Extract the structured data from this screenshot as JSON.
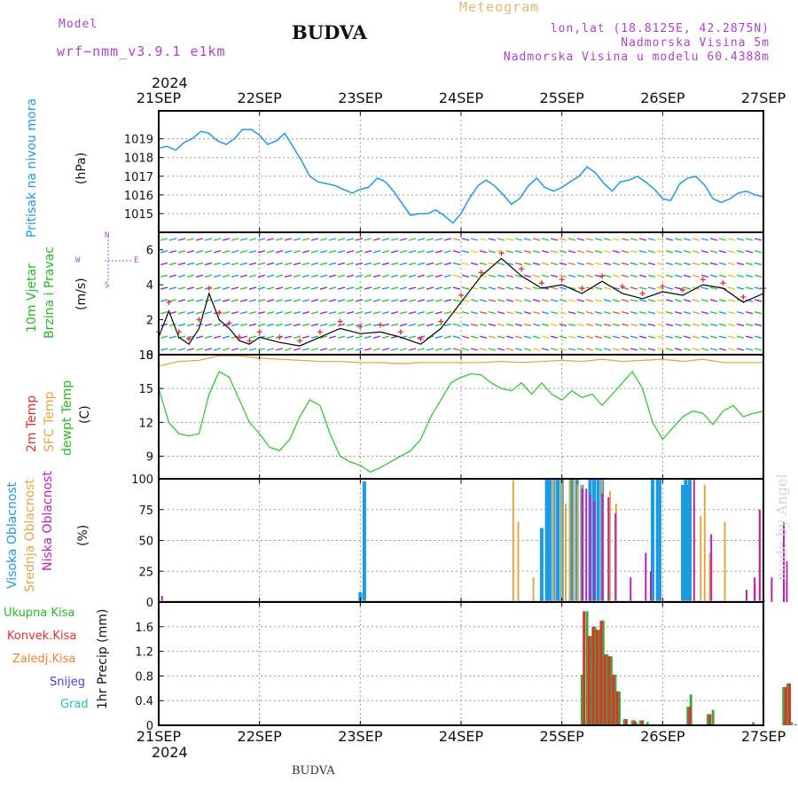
{
  "header": {
    "model_label": "Model",
    "model_name": "wrf−nmm_v3.9.1  e1km",
    "title": "BUDVA",
    "meteogram": "Meteogram",
    "coords": "lon,lat (18.8125E, 42.2875N)",
    "elevation": "Nadmorska Visina 5m",
    "model_elevation": "Nadmorska Visina u modelu 60.4388m"
  },
  "footer": {
    "title": "BUDVA"
  },
  "watermark": "made by Angel",
  "colors": {
    "pressure": "#1e9be0",
    "sfc_temp": "#e0a840",
    "dewpt": "#2ecc2e",
    "temp2m": "#e03030",
    "high_cloud": "#1e9be0",
    "mid_cloud": "#e0a840",
    "low_cloud": "#c020b0",
    "total_precip": "#3aaa3a",
    "conv_precip": "#e03030",
    "frz_precip": "#f08030",
    "snow": "#4040e0",
    "hail": "#20c0c0",
    "wind_speed": "#000000",
    "wind_gust": "#e03030"
  },
  "time_axis": {
    "year": "2024",
    "days": [
      "21SEP",
      "22SEP",
      "23SEP",
      "24SEP",
      "25SEP",
      "26SEP",
      "27SEP"
    ]
  },
  "wind_direction_legend": {
    "north": "N",
    "south": "S",
    "west": "W",
    "east": "E"
  },
  "chart_data": [
    {
      "type": "line",
      "name": "pressure",
      "title": "",
      "ylabels": [
        "Pritisak na nivou mora",
        "(hPa)"
      ],
      "ylim": [
        1014,
        1020.5
      ],
      "yticks": [
        1015,
        1016,
        1017,
        1018,
        1019
      ],
      "x_unit": "days since 21SEP 00UTC",
      "series": [
        {
          "name": "Pritisak na nivou mora",
          "x": [
            0,
            0.08,
            0.17,
            0.25,
            0.33,
            0.42,
            0.5,
            0.58,
            0.67,
            0.75,
            0.83,
            0.92,
            1.0,
            1.08,
            1.17,
            1.25,
            1.33,
            1.42,
            1.5,
            1.58,
            1.67,
            1.75,
            1.83,
            1.92,
            2.0,
            2.08,
            2.17,
            2.25,
            2.33,
            2.42,
            2.5,
            2.58,
            2.67,
            2.75,
            2.83,
            2.92,
            3.0,
            3.08,
            3.17,
            3.25,
            3.33,
            3.42,
            3.5,
            3.58,
            3.67,
            3.75,
            3.83,
            3.92,
            4.0,
            4.08,
            4.17,
            4.25,
            4.33,
            4.42,
            4.5,
            4.58,
            4.67,
            4.75,
            4.83,
            4.92,
            5.0,
            5.08,
            5.17,
            5.25,
            5.33,
            5.42,
            5.5,
            5.58,
            5.67,
            5.75,
            5.83,
            5.92,
            6.0
          ],
          "values": [
            1018.5,
            1018.6,
            1018.4,
            1018.8,
            1019.0,
            1019.4,
            1019.3,
            1018.9,
            1018.7,
            1019.0,
            1019.5,
            1019.5,
            1019.2,
            1018.7,
            1018.9,
            1019.3,
            1018.6,
            1017.8,
            1017.0,
            1016.7,
            1016.6,
            1016.5,
            1016.3,
            1016.1,
            1016.3,
            1016.4,
            1016.9,
            1016.7,
            1016.2,
            1015.5,
            1014.9,
            1015.0,
            1015.0,
            1015.2,
            1014.9,
            1014.5,
            1015.0,
            1015.8,
            1016.5,
            1016.8,
            1016.5,
            1016.0,
            1015.5,
            1015.8,
            1016.5,
            1016.9,
            1016.4,
            1016.2,
            1016.4,
            1016.7,
            1017.0,
            1017.5,
            1017.2,
            1016.6,
            1016.2,
            1016.7,
            1016.8,
            1017.0,
            1016.7,
            1016.3,
            1015.8,
            1015.7,
            1016.6,
            1016.9,
            1017.0,
            1016.5,
            1015.8,
            1015.6,
            1015.8,
            1016.1,
            1016.2,
            1016.0,
            1015.9
          ]
        }
      ]
    },
    {
      "type": "line",
      "name": "wind",
      "title": "",
      "ylabels": [
        "10m Vjetar",
        "Brzina i Pravac",
        "(m/s)"
      ],
      "ylim": [
        0,
        7
      ],
      "yticks": [
        0,
        2,
        4,
        6
      ],
      "x_unit": "days since 21SEP 00UTC",
      "series": [
        {
          "name": "speed",
          "x": [
            0,
            0.1,
            0.2,
            0.3,
            0.4,
            0.5,
            0.6,
            0.7,
            0.8,
            0.9,
            1.0,
            1.2,
            1.4,
            1.6,
            1.8,
            2.0,
            2.2,
            2.4,
            2.6,
            2.8,
            3.0,
            3.2,
            3.4,
            3.6,
            3.8,
            4.0,
            4.2,
            4.4,
            4.6,
            4.8,
            5.0,
            5.2,
            5.4,
            5.6,
            5.8,
            6.0
          ],
          "values": [
            1.0,
            2.5,
            1.0,
            0.6,
            1.5,
            3.5,
            2.0,
            1.5,
            0.8,
            0.6,
            1.0,
            0.7,
            0.5,
            1.0,
            1.5,
            1.2,
            1.3,
            1.0,
            0.6,
            1.5,
            3.0,
            4.5,
            5.5,
            4.5,
            3.8,
            4.0,
            3.5,
            4.2,
            3.5,
            3.2,
            3.6,
            3.4,
            4.0,
            3.8,
            3.0,
            3.5
          ]
        },
        {
          "name": "gust",
          "x": [
            0,
            0.1,
            0.2,
            0.3,
            0.4,
            0.5,
            0.6,
            0.7,
            0.8,
            0.9,
            1.0,
            1.2,
            1.4,
            1.6,
            1.8,
            2.0,
            2.2,
            2.4,
            2.6,
            2.8,
            3.0,
            3.2,
            3.4,
            3.6,
            3.8,
            4.0,
            4.2,
            4.4,
            4.6,
            4.8,
            5.0,
            5.2,
            5.4,
            5.6,
            5.8,
            6.0
          ],
          "values": [
            1.3,
            3.0,
            1.3,
            0.9,
            2.0,
            3.8,
            2.4,
            1.8,
            1.0,
            0.8,
            1.3,
            1.0,
            0.8,
            1.3,
            1.9,
            1.6,
            1.7,
            1.3,
            0.9,
            1.9,
            3.4,
            4.7,
            5.8,
            4.9,
            4.1,
            4.3,
            3.8,
            4.5,
            3.9,
            3.5,
            3.9,
            3.7,
            4.3,
            4.1,
            3.3,
            3.8
          ]
        }
      ]
    },
    {
      "type": "line",
      "name": "temperature",
      "title": "",
      "ylabels": [
        "2m Temp",
        "SFC Temp",
        "dewpt Temp",
        "(C)"
      ],
      "ylim": [
        7,
        18
      ],
      "yticks": [
        9,
        12,
        15,
        18
      ],
      "x_unit": "days since 21SEP 00UTC",
      "series": [
        {
          "name": "SFC Temp",
          "x": [
            0,
            0.2,
            0.4,
            0.6,
            0.8,
            1.0,
            1.2,
            1.4,
            1.6,
            1.8,
            2.0,
            2.2,
            2.4,
            2.6,
            2.8,
            3.0,
            3.2,
            3.4,
            3.6,
            3.8,
            4.0,
            4.2,
            4.4,
            4.6,
            4.8,
            5.0,
            5.2,
            5.4,
            5.6,
            5.8,
            6.0
          ],
          "values": [
            17.0,
            17.4,
            17.5,
            17.9,
            17.9,
            17.7,
            17.6,
            17.5,
            17.4,
            17.4,
            17.3,
            17.3,
            17.2,
            17.3,
            17.3,
            17.3,
            17.3,
            17.4,
            17.3,
            17.4,
            17.5,
            17.4,
            17.6,
            17.4,
            17.5,
            17.6,
            17.4,
            17.6,
            17.3,
            17.3,
            17.3
          ]
        },
        {
          "name": "dewpt Temp",
          "x": [
            0,
            0.1,
            0.2,
            0.3,
            0.4,
            0.5,
            0.6,
            0.7,
            0.8,
            0.9,
            1.0,
            1.1,
            1.2,
            1.3,
            1.4,
            1.5,
            1.6,
            1.7,
            1.8,
            1.9,
            2.0,
            2.1,
            2.2,
            2.3,
            2.4,
            2.5,
            2.6,
            2.7,
            2.8,
            2.9,
            3.0,
            3.1,
            3.2,
            3.3,
            3.4,
            3.5,
            3.6,
            3.7,
            3.8,
            3.9,
            4.0,
            4.1,
            4.2,
            4.3,
            4.4,
            4.5,
            4.6,
            4.7,
            4.8,
            4.9,
            5.0,
            5.1,
            5.2,
            5.3,
            5.4,
            5.5,
            5.6,
            5.7,
            5.8,
            5.9,
            6.0
          ],
          "values": [
            15.0,
            12.0,
            11.0,
            10.8,
            11.0,
            14.5,
            16.5,
            16.0,
            14.0,
            12.0,
            11.0,
            9.8,
            9.5,
            10.5,
            12.5,
            14.0,
            13.5,
            11.0,
            9.0,
            8.5,
            8.2,
            7.6,
            8.0,
            8.5,
            9.0,
            9.5,
            10.5,
            12.5,
            14.0,
            15.5,
            16.0,
            16.3,
            16.2,
            15.5,
            15.0,
            14.8,
            15.5,
            14.5,
            15.5,
            14.5,
            14.0,
            14.8,
            14.2,
            14.5,
            13.5,
            14.5,
            15.5,
            16.5,
            15.0,
            12.0,
            10.5,
            11.5,
            12.5,
            13.0,
            12.8,
            11.8,
            13.0,
            13.5,
            12.5,
            12.8,
            13.0
          ]
        }
      ]
    },
    {
      "type": "bar",
      "name": "cloud",
      "title": "",
      "ylabels": [
        "Visoka Oblacnost",
        "Srednja Oblacnost",
        "Niska Oblacnost",
        "(%)"
      ],
      "ylim": [
        0,
        100
      ],
      "yticks": [
        0,
        25,
        50,
        75,
        100
      ],
      "x_unit": "days since 21SEP 00UTC",
      "series": [
        {
          "name": "Visoka Oblacnost",
          "x": [
            2.0,
            2.04,
            3.8,
            3.85,
            3.88,
            3.92,
            3.96,
            4.0,
            4.1,
            4.15,
            4.2,
            4.28,
            4.32,
            4.36,
            4.4,
            4.9,
            4.95,
            4.97,
            5.2,
            5.23,
            5.25,
            5.27,
            6.0
          ],
          "values": [
            8,
            98,
            60,
            100,
            100,
            100,
            100,
            100,
            100,
            100,
            95,
            100,
            100,
            100,
            100,
            100,
            100,
            100,
            95,
            100,
            95,
            100,
            1
          ]
        },
        {
          "name": "Srednja Oblacnost",
          "x": [
            3.5,
            3.55,
            3.7,
            3.9,
            3.98,
            4.02,
            4.06,
            4.1,
            4.14,
            4.18,
            4.38,
            4.46,
            4.52,
            5.36,
            5.4,
            5.45,
            5.6,
            5.9,
            5.95
          ],
          "values": [
            100,
            65,
            20,
            100,
            100,
            80,
            100,
            100,
            95,
            95,
            100,
            90,
            80,
            70,
            95,
            40,
            65,
            15,
            75
          ]
        },
        {
          "name": "Niska Oblacnost",
          "x": [
            0.05,
            4.22,
            4.26,
            4.3,
            4.34,
            4.42,
            4.48,
            4.55,
            4.7,
            4.85,
            4.9,
            5.33,
            5.5,
            5.85,
            5.93,
            5.98,
            6.1,
            6.22,
            6.25
          ],
          "values": [
            5,
            92,
            92,
            87,
            82,
            88,
            85,
            72,
            20,
            40,
            25,
            100,
            55,
            10,
            20,
            75,
            20,
            65,
            33
          ]
        }
      ]
    },
    {
      "type": "bar",
      "name": "precipitation",
      "title": "",
      "ylabels": [
        "1hr Precip (mm)"
      ],
      "legend": [
        "Ukupna Kisa",
        "Konvek.Kisa",
        "Zaledj.Kisa",
        "Snijeg",
        "Grad"
      ],
      "ylim": [
        0,
        2.0
      ],
      "yticks": [
        0,
        0.4,
        0.8,
        1.2,
        1.6
      ],
      "x_unit": "days since 21SEP 00UTC",
      "series": [
        {
          "name": "Ukupna Kisa",
          "x": [
            4.2,
            4.25,
            4.29,
            4.33,
            4.37,
            4.41,
            4.45,
            4.49,
            4.53,
            4.57,
            4.62,
            4.7,
            4.74,
            4.78,
            4.85,
            5.25,
            5.28,
            5.45,
            5.5,
            5.9,
            6.2,
            6.24,
            6.28,
            6.32
          ],
          "values": [
            0.82,
            1.85,
            1.45,
            1.6,
            1.55,
            1.7,
            1.15,
            1.12,
            0.82,
            0.55,
            0.1,
            0.08,
            0.05,
            0.08,
            0.05,
            0.3,
            0.5,
            0.18,
            0.25,
            0.05,
            0.62,
            0.68,
            0.05,
            0.02
          ]
        },
        {
          "name": "Konvek.Kisa",
          "x": [
            4.22,
            4.27,
            4.31,
            4.35,
            4.39,
            4.43,
            4.47,
            4.51,
            4.55,
            4.64,
            4.72,
            4.8,
            5.27,
            5.47,
            6.22,
            6.26
          ],
          "values": [
            1.85,
            1.45,
            1.6,
            1.55,
            1.7,
            1.15,
            1.12,
            0.82,
            0.55,
            0.1,
            0.08,
            0.08,
            0.3,
            0.18,
            0.62,
            0.68
          ]
        }
      ]
    }
  ]
}
